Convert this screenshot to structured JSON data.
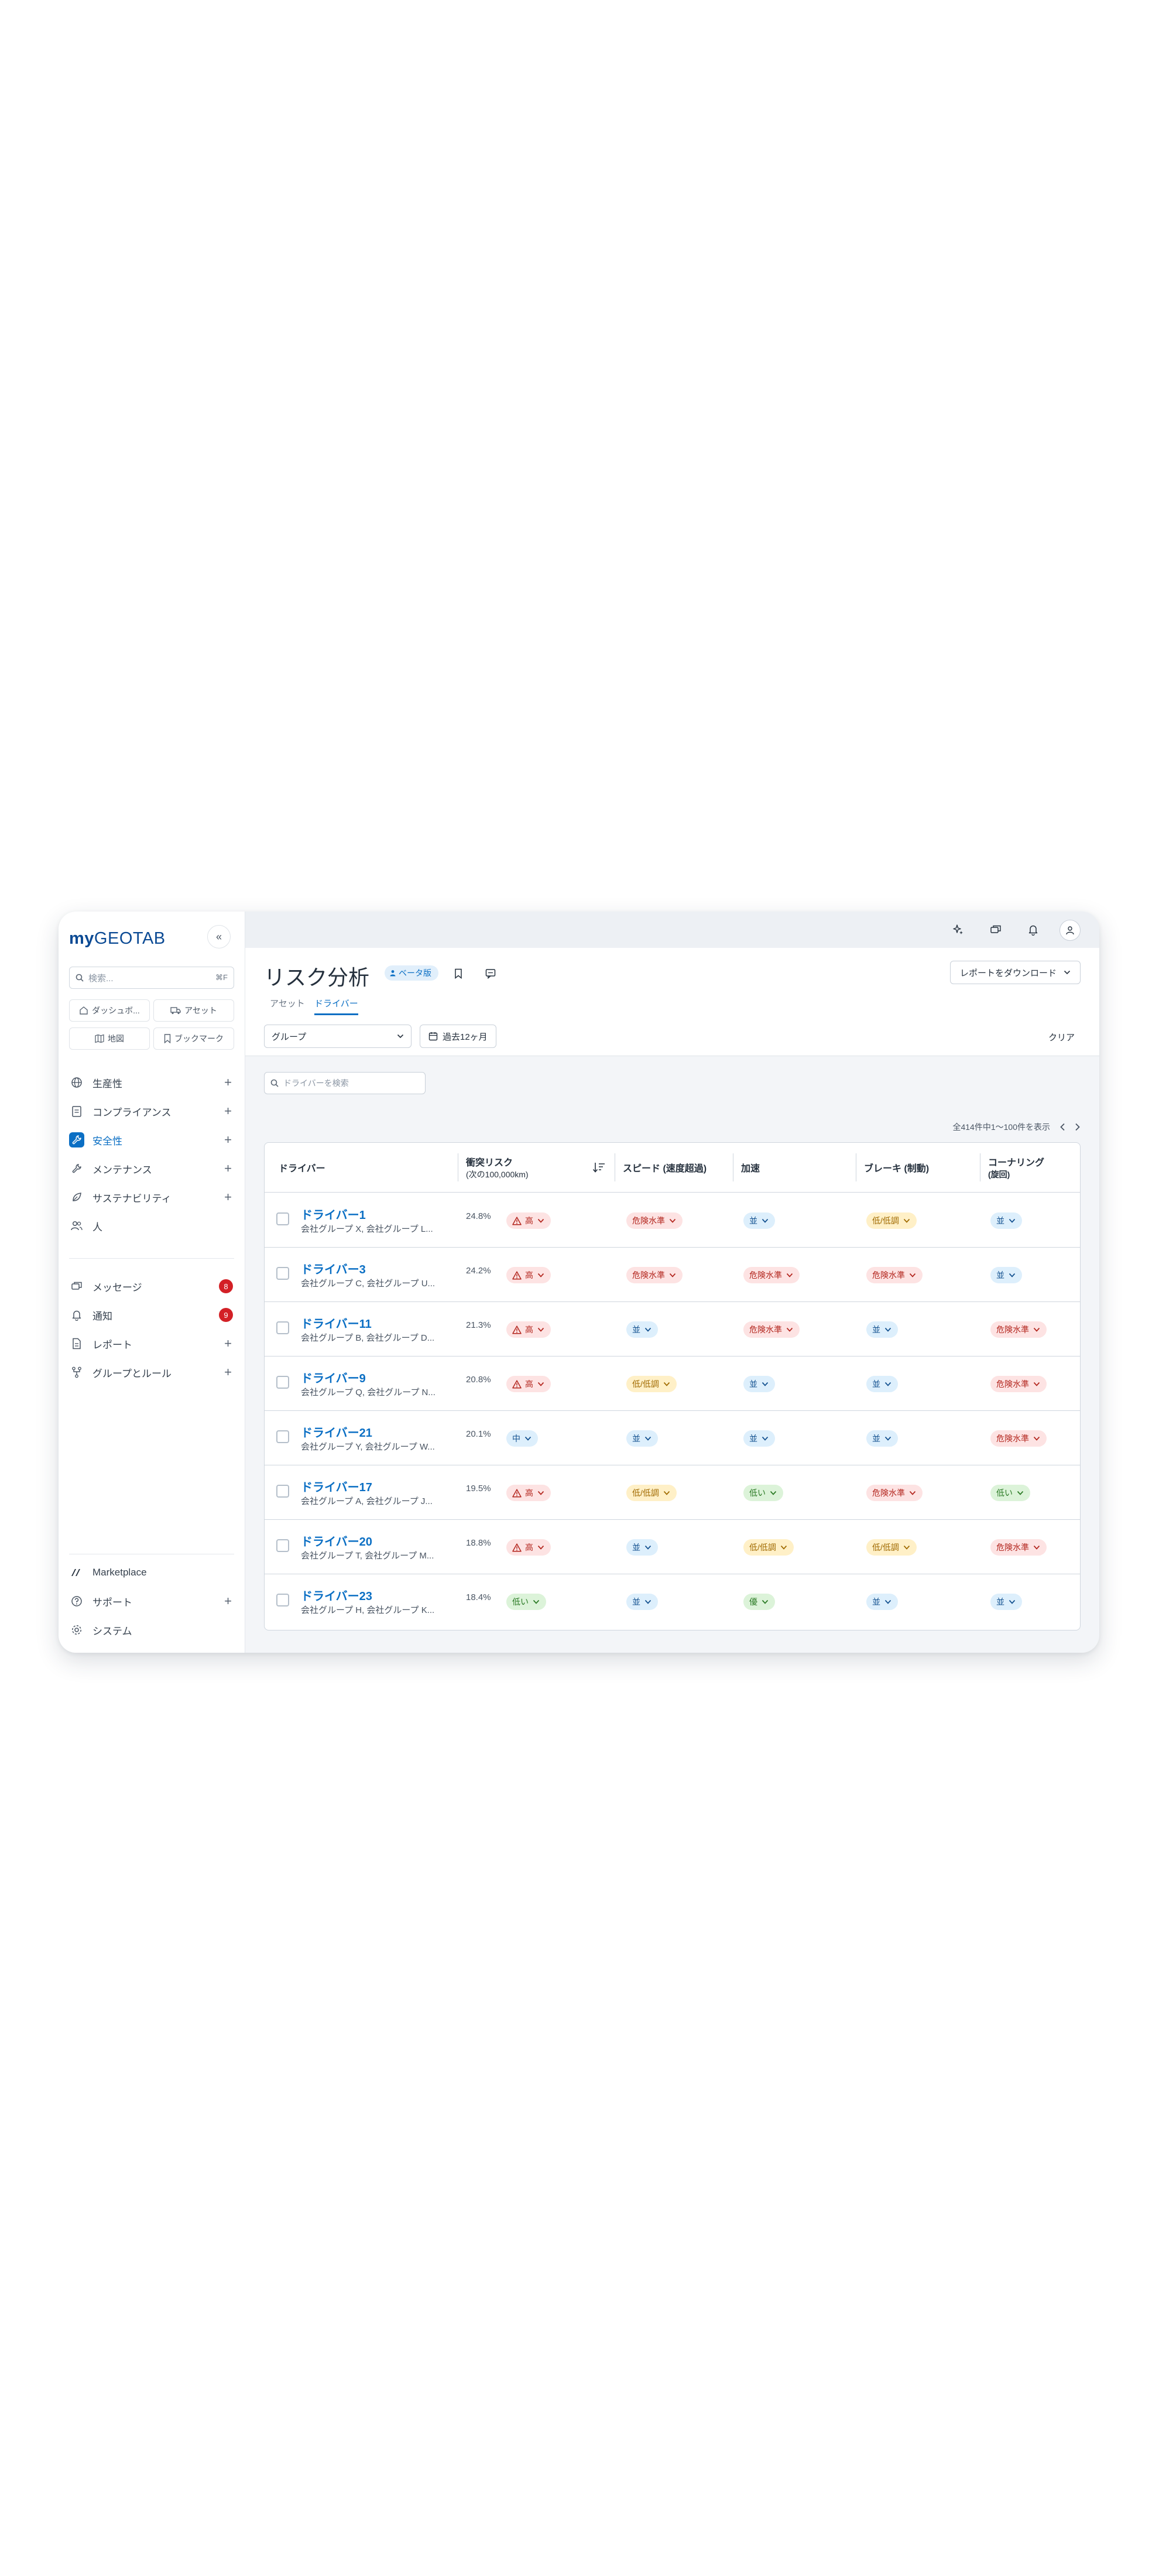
{
  "sidebar": {
    "logo_my": "my",
    "logo_rest": "GEOTAB",
    "search_placeholder": "検索...",
    "search_shortcut": "⌘F",
    "shortcuts": [
      "ダッシュボ...",
      "アセット",
      "地図",
      "ブックマーク"
    ],
    "nav": [
      {
        "label": "生産性",
        "icon": "globe-icon"
      },
      {
        "label": "コンプライアンス",
        "icon": "clipboard-icon"
      },
      {
        "label": "安全性",
        "icon": "wrench-safety-icon"
      },
      {
        "label": "メンテナンス",
        "icon": "wrench-icon"
      },
      {
        "label": "サステナビリティ",
        "icon": "leaf-icon"
      },
      {
        "label": "人",
        "icon": "people-icon"
      }
    ],
    "nav2": [
      {
        "label": "メッセージ",
        "badge": "8"
      },
      {
        "label": "通知",
        "badge": "9"
      },
      {
        "label": "レポート"
      },
      {
        "label": "グループとルール"
      }
    ],
    "bottom": [
      {
        "label": "Marketplace"
      },
      {
        "label": "サポート"
      },
      {
        "label": "システム"
      }
    ]
  },
  "header": {
    "title": "リスク分析",
    "beta": "ベータ版",
    "download": "レポートをダウンロード",
    "tabs": [
      "アセット",
      "ドライバー"
    ],
    "active_tab": "ドライバー",
    "group_select": "グループ",
    "date_range": "過去12ヶ月",
    "clear": "クリア"
  },
  "table_controls": {
    "search_placeholder": "ドライバーを検索",
    "pagination": "全414件中1〜100件を表示"
  },
  "columns": {
    "driver": "ドライバー",
    "collision": "衝突リスク",
    "collision_sub": "(次の100,000km)",
    "speed": "スピード (速度超過)",
    "accel": "加速",
    "brake": "ブレーキ (制動)",
    "corner": "コーナリング",
    "corner_sub": "(旋回)"
  },
  "rows": [
    {
      "name": "ドライバー1",
      "groups": "会社グループ X, 会社グループ L...",
      "pct": "24.8%",
      "risk": "高",
      "speed": "危険水準",
      "accel": "並",
      "brake": "低/低調",
      "corner": "並"
    },
    {
      "name": "ドライバー3",
      "groups": "会社グループ C, 会社グループ U...",
      "pct": "24.2%",
      "risk": "高",
      "speed": "危険水準",
      "accel": "危険水準",
      "brake": "危険水準",
      "corner": "並"
    },
    {
      "name": "ドライバー11",
      "groups": "会社グループ B, 会社グループ D...",
      "pct": "21.3%",
      "risk": "高",
      "speed": "並",
      "accel": "危険水準",
      "brake": "並",
      "corner": "危険水準"
    },
    {
      "name": "ドライバー9",
      "groups": "会社グループ Q, 会社グループ N...",
      "pct": "20.8%",
      "risk": "高",
      "speed": "低/低調",
      "accel": "並",
      "brake": "並",
      "corner": "危険水準"
    },
    {
      "name": "ドライバー21",
      "groups": "会社グループ Y, 会社グループ W...",
      "pct": "20.1%",
      "risk": "中",
      "speed": "並",
      "accel": "並",
      "brake": "並",
      "corner": "危険水準"
    },
    {
      "name": "ドライバー17",
      "groups": "会社グループ A, 会社グループ J...",
      "pct": "19.5%",
      "risk": "高",
      "speed": "低/低調",
      "accel": "低い",
      "brake": "危険水準",
      "corner": "低い"
    },
    {
      "name": "ドライバー20",
      "groups": "会社グループ T, 会社グループ M...",
      "pct": "18.8%",
      "risk": "高",
      "speed": "並",
      "accel": "低/低調",
      "brake": "低/低調",
      "corner": "危険水準"
    },
    {
      "name": "ドライバー23",
      "groups": "会社グループ H, 会社グループ K...",
      "pct": "18.4%",
      "risk": "低い",
      "speed": "並",
      "accel": "優",
      "brake": "並",
      "corner": "並"
    }
  ],
  "colors": {
    "brand": "#0b4a94",
    "accent": "#0b6fc4",
    "danger": "#d32026",
    "danger_bg": "#fde3e3",
    "normal_bg": "#ddeffc",
    "low_bg": "#fff0c7",
    "good_bg": "#dcf3d9"
  }
}
